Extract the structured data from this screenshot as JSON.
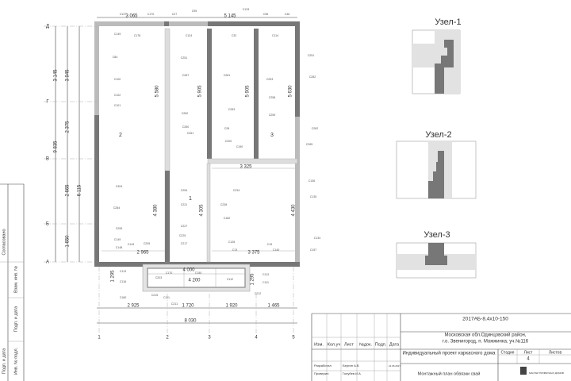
{
  "stamp": {
    "agreed": "Согласовано",
    "replace": "Взам. инв. №",
    "sign_date_1": "Подп. и дата",
    "inv": "Инв. № подл.",
    "sign_date_2": "Подп. и дата"
  },
  "nodes": [
    {
      "title": "Узел-1"
    },
    {
      "title": "Узел-2"
    },
    {
      "title": "Узел-3"
    }
  ],
  "plan": {
    "axes_rows": [
      "Д",
      "Г",
      "В",
      "Б",
      "А"
    ],
    "axes_cols": [
      "1",
      "2",
      "3",
      "4",
      "5"
    ],
    "dimensions": [
      "3 065",
      "5 145",
      "2 925",
      "1 720",
      "1 920",
      "1 465",
      "8 030",
      "4 000",
      "4 200",
      "2 965",
      "3 375",
      "3 325",
      "3 145",
      "3 945",
      "9 835",
      "2 375",
      "2 665",
      "6 115",
      "1 650",
      "1 295",
      "5 580",
      "5 905",
      "5 905",
      "5 630",
      "4 380",
      "4 305",
      "4 430",
      "1 295"
    ],
    "rooms": [
      "1",
      "2",
      "3"
    ],
    "marks": [
      "С137",
      "С170",
      "С27",
      "С95",
      "С133",
      "С96",
      "С46",
      "С149",
      "С178",
      "С84",
      "С100",
      "С102",
      "С101",
      "С124",
      "С251",
      "С287",
      "С262",
      "С260",
      "С261",
      "С32",
      "С281",
      "С283",
      "С28",
      "С200",
      "С190",
      "С114",
      "С253",
      "С258",
      "С259",
      "С251",
      "С282",
      "С262",
      "С265",
      "С136",
      "С135",
      "С134",
      "С157",
      "С304",
      "С284",
      "С206",
      "С149",
      "С143",
      "С148",
      "С205",
      "С254",
      "С221",
      "С227",
      "С225",
      "С217",
      "С234",
      "С238",
      "С182",
      "С128",
      "С13",
      "С15",
      "С140",
      "С113",
      "С116",
      "С203",
      "С170",
      "С150",
      "С112",
      "С113",
      "С111",
      "С212",
      "С211",
      "С111",
      "С180",
      "С215"
    ]
  },
  "title_block": {
    "code": "2017АБ-8,4х10-150",
    "address_1": "Московская обл.Одинцовский район,",
    "address_2": "г.о. Звенигород, п. Можжинка, уч.№116",
    "project": "Индивидуальный проект каркасного дома",
    "cols": [
      "Изм.",
      "Кол.уч",
      "Лист",
      "№док.",
      "Подп.",
      "Дата"
    ],
    "stage": "Стадия",
    "sheet": "Лист",
    "sheets": "Листов",
    "sheet_no": "4",
    "dev_role": "Разработал",
    "dev_name": "Бергин А.В",
    "dev_date": "21.06.2017",
    "chk_role": "Проверил",
    "chk_name": "Голубев И.А",
    "sheet_title": "Монтажный план обвязки свай",
    "logo": "МАСТЕР ПРИВАТНЫХ ДОМОВ"
  }
}
